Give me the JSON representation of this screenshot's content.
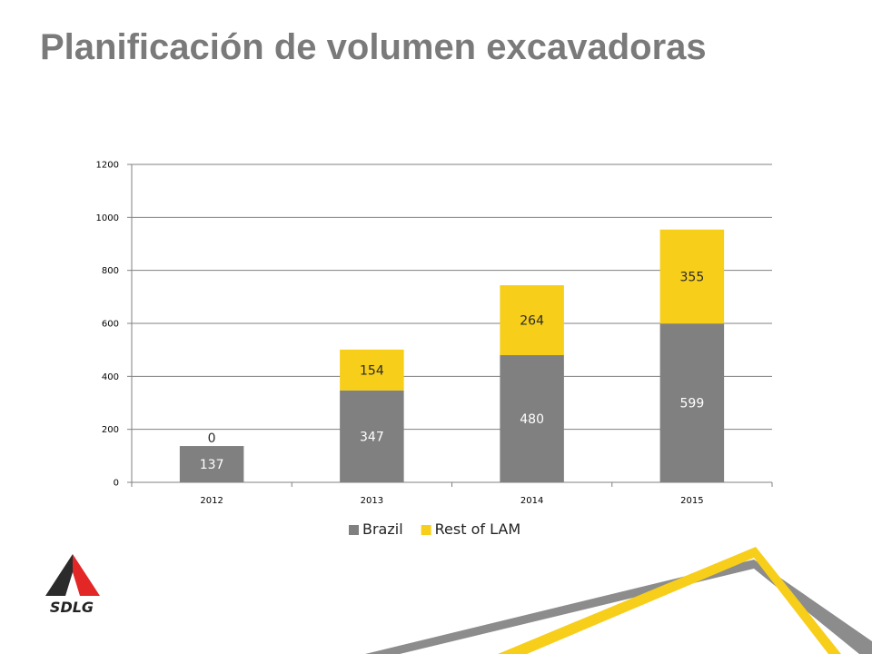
{
  "title": "Planificación de volumen excavadoras",
  "brand": "SDLG",
  "colors": {
    "brazil": "#808080",
    "rest_of_lam": "#f7ce1a",
    "grid": "#808080",
    "title": "#7a7a7a",
    "logo_red": "#e32626",
    "logo_dark": "#2b2b2b"
  },
  "chart_data": {
    "type": "bar",
    "stacked": true,
    "categories": [
      "2012",
      "2013",
      "2014",
      "2015"
    ],
    "series": [
      {
        "name": "Brazil",
        "values": [
          137,
          347,
          480,
          599
        ],
        "color": "#808080"
      },
      {
        "name": "Rest of LAM",
        "values": [
          0,
          154,
          264,
          355
        ],
        "color": "#f7ce1a"
      }
    ],
    "ylim": [
      0,
      1200
    ],
    "yticks": [
      0,
      200,
      400,
      600,
      800,
      1000,
      1200
    ],
    "grid": true,
    "legend": "bottom",
    "xlabel": "",
    "ylabel": ""
  }
}
